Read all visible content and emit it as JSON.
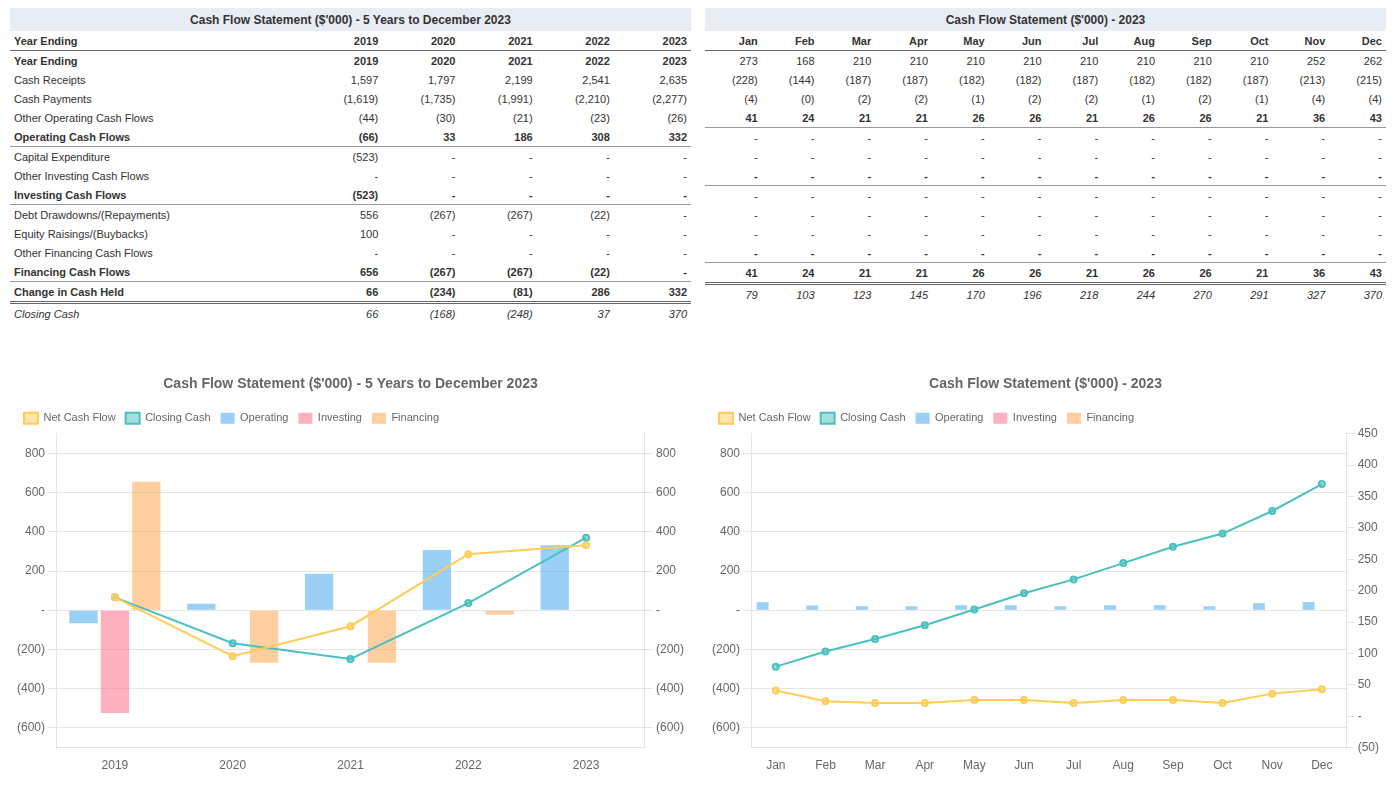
{
  "chart_data": [
    {
      "type": "bar",
      "title": "Cash Flow Statement ($'000) - 5 Years to December 2023",
      "categories": [
        "2019",
        "2020",
        "2021",
        "2022",
        "2023"
      ],
      "series": [
        {
          "name": "Operating",
          "type": "bar",
          "values": [
            -66,
            33,
            186,
            308,
            332
          ]
        },
        {
          "name": "Investing",
          "type": "bar",
          "values": [
            -523,
            0,
            0,
            0,
            0
          ]
        },
        {
          "name": "Financing",
          "type": "bar",
          "values": [
            656,
            -267,
            -267,
            -22,
            0
          ]
        },
        {
          "name": "Net Cash Flow",
          "type": "line",
          "marker": "circle",
          "axis": "y2",
          "values": [
            66,
            -234,
            -81,
            286,
            332
          ]
        },
        {
          "name": "Closing Cash",
          "type": "line",
          "marker": "circle",
          "axis": "y2",
          "values": [
            66,
            -168,
            -248,
            37,
            370
          ]
        }
      ],
      "ylim": [
        -700,
        900
      ],
      "yticks": [
        {
          "value": -600,
          "label": "(600)"
        },
        {
          "value": -400,
          "label": "(400)"
        },
        {
          "value": -200,
          "label": "(200)"
        },
        {
          "value": 0,
          "label": "-"
        },
        200,
        400,
        600,
        800
      ],
      "y2lim": [
        -700,
        900
      ],
      "y2ticks": [
        {
          "value": -600,
          "label": "(600)"
        },
        {
          "value": -400,
          "label": "(400)"
        },
        {
          "value": -200,
          "label": "(200)"
        },
        {
          "value": 0,
          "label": "-"
        },
        200,
        400,
        600,
        800
      ],
      "grid": true,
      "legend": "upper left"
    },
    {
      "type": "bar",
      "title": "Cash Flow Statement ($'000) - 2023",
      "categories": [
        "Jan",
        "Feb",
        "Mar",
        "Apr",
        "May",
        "Jun",
        "Jul",
        "Aug",
        "Sep",
        "Oct",
        "Nov",
        "Dec"
      ],
      "series": [
        {
          "name": "Operating",
          "type": "bar",
          "values": [
            41,
            24,
            21,
            21,
            26,
            26,
            21,
            26,
            26,
            21,
            36,
            43
          ]
        },
        {
          "name": "Investing",
          "type": "bar",
          "values": [
            0,
            0,
            0,
            0,
            0,
            0,
            0,
            0,
            0,
            0,
            0,
            0
          ]
        },
        {
          "name": "Financing",
          "type": "bar",
          "values": [
            0,
            0,
            0,
            0,
            0,
            0,
            0,
            0,
            0,
            0,
            0,
            0
          ]
        },
        {
          "name": "Net Cash Flow",
          "type": "line",
          "marker": "circle",
          "axis": "y2",
          "values": [
            41,
            24,
            21,
            21,
            26,
            26,
            21,
            26,
            26,
            21,
            36,
            43
          ]
        },
        {
          "name": "Closing Cash",
          "type": "line",
          "marker": "circle",
          "axis": "y2",
          "values": [
            79,
            103,
            123,
            145,
            170,
            196,
            218,
            244,
            270,
            291,
            327,
            370
          ]
        }
      ],
      "ylim": [
        -700,
        900
      ],
      "yticks": [
        {
          "value": -600,
          "label": "(600)"
        },
        {
          "value": -400,
          "label": "(400)"
        },
        {
          "value": -200,
          "label": "(200)"
        },
        {
          "value": 0,
          "label": "-"
        },
        200,
        400,
        600,
        800
      ],
      "y2lim": [
        -50,
        450
      ],
      "y2ticks": [
        {
          "value": -50,
          "label": "(50)"
        },
        {
          "value": 0,
          "label": "-"
        },
        50,
        100,
        150,
        200,
        250,
        300,
        350,
        400,
        450
      ],
      "grid": true,
      "legend": "upper left"
    }
  ],
  "tables": [
    {
      "title": "Cash Flow Statement ($'000) - 5 Years to December 2023",
      "columns": [
        "Year Ending",
        "2019",
        "2020",
        "2021",
        "2022",
        "2023"
      ],
      "rows": [
        {
          "label": "Year Ending",
          "values": [
            "2019",
            "2020",
            "2021",
            "2022",
            "2023"
          ]
        },
        {
          "label": "Cash Receipts",
          "values": [
            "1,597",
            "1,797",
            "2,199",
            "2,541",
            "2,635"
          ]
        },
        {
          "label": "Cash Payments",
          "values": [
            "(1,619)",
            "(1,735)",
            "(1,991)",
            "(2,210)",
            "(2,277)"
          ]
        },
        {
          "label": "Other Operating Cash Flows",
          "values": [
            "(44)",
            "(30)",
            "(21)",
            "(23)",
            "(26)"
          ]
        },
        {
          "label": "Operating Cash Flows",
          "values": [
            "(66)",
            "33",
            "186",
            "308",
            "332"
          ]
        },
        {
          "label": "Capital Expenditure",
          "values": [
            "(523)",
            "-",
            "-",
            "-",
            "-"
          ]
        },
        {
          "label": "Other Investing Cash Flows",
          "values": [
            "-",
            "-",
            "-",
            "-",
            "-"
          ]
        },
        {
          "label": "Investing Cash Flows",
          "values": [
            "(523)",
            "-",
            "-",
            "-",
            "-"
          ]
        },
        {
          "label": "Debt Drawdowns/(Repayments)",
          "values": [
            "556",
            "(267)",
            "(267)",
            "(22)",
            "-"
          ]
        },
        {
          "label": "Equity Raisings/(Buybacks)",
          "values": [
            "100",
            "-",
            "-",
            "-",
            "-"
          ]
        },
        {
          "label": "Other Financing Cash Flows",
          "values": [
            "-",
            "-",
            "-",
            "-",
            "-"
          ]
        },
        {
          "label": "Financing Cash Flows",
          "values": [
            "656",
            "(267)",
            "(267)",
            "(22)",
            "-"
          ]
        },
        {
          "label": "Change in Cash Held",
          "values": [
            "66",
            "(234)",
            "(81)",
            "286",
            "332"
          ]
        },
        {
          "label": "Closing Cash",
          "values": [
            "66",
            "(168)",
            "(248)",
            "37",
            "370"
          ]
        }
      ]
    },
    {
      "title": "Cash Flow Statement ($'000) - 2023",
      "columns": [
        "Jan",
        "Feb",
        "Mar",
        "Apr",
        "May",
        "Jun",
        "Jul",
        "Aug",
        "Sep",
        "Oct",
        "Nov",
        "Dec"
      ],
      "rows": [
        {
          "values": [
            "273",
            "168",
            "210",
            "210",
            "210",
            "210",
            "210",
            "210",
            "210",
            "210",
            "252",
            "262"
          ]
        },
        {
          "values": [
            "(228)",
            "(144)",
            "(187)",
            "(187)",
            "(182)",
            "(182)",
            "(187)",
            "(182)",
            "(182)",
            "(187)",
            "(213)",
            "(215)"
          ]
        },
        {
          "values": [
            "(4)",
            "(0)",
            "(2)",
            "(2)",
            "(1)",
            "(2)",
            "(2)",
            "(1)",
            "(2)",
            "(1)",
            "(4)",
            "(4)"
          ]
        },
        {
          "values": [
            "41",
            "24",
            "21",
            "21",
            "26",
            "26",
            "21",
            "26",
            "26",
            "21",
            "36",
            "43"
          ]
        },
        {
          "values": [
            "-",
            "-",
            "-",
            "-",
            "-",
            "-",
            "-",
            "-",
            "-",
            "-",
            "-",
            "-"
          ]
        },
        {
          "values": [
            "-",
            "-",
            "-",
            "-",
            "-",
            "-",
            "-",
            "-",
            "-",
            "-",
            "-",
            "-"
          ]
        },
        {
          "values": [
            "-",
            "-",
            "-",
            "-",
            "-",
            "-",
            "-",
            "-",
            "-",
            "-",
            "-",
            "-"
          ]
        },
        {
          "values": [
            "-",
            "-",
            "-",
            "-",
            "-",
            "-",
            "-",
            "-",
            "-",
            "-",
            "-",
            "-"
          ]
        },
        {
          "values": [
            "-",
            "-",
            "-",
            "-",
            "-",
            "-",
            "-",
            "-",
            "-",
            "-",
            "-",
            "-"
          ]
        },
        {
          "values": [
            "-",
            "-",
            "-",
            "-",
            "-",
            "-",
            "-",
            "-",
            "-",
            "-",
            "-",
            "-"
          ]
        },
        {
          "values": [
            "-",
            "-",
            "-",
            "-",
            "-",
            "-",
            "-",
            "-",
            "-",
            "-",
            "-",
            "-"
          ]
        },
        {
          "values": [
            "41",
            "24",
            "21",
            "21",
            "26",
            "26",
            "21",
            "26",
            "26",
            "21",
            "36",
            "43"
          ]
        },
        {
          "values": [
            "79",
            "103",
            "123",
            "145",
            "170",
            "196",
            "218",
            "244",
            "270",
            "291",
            "327",
            "370"
          ]
        }
      ]
    }
  ]
}
